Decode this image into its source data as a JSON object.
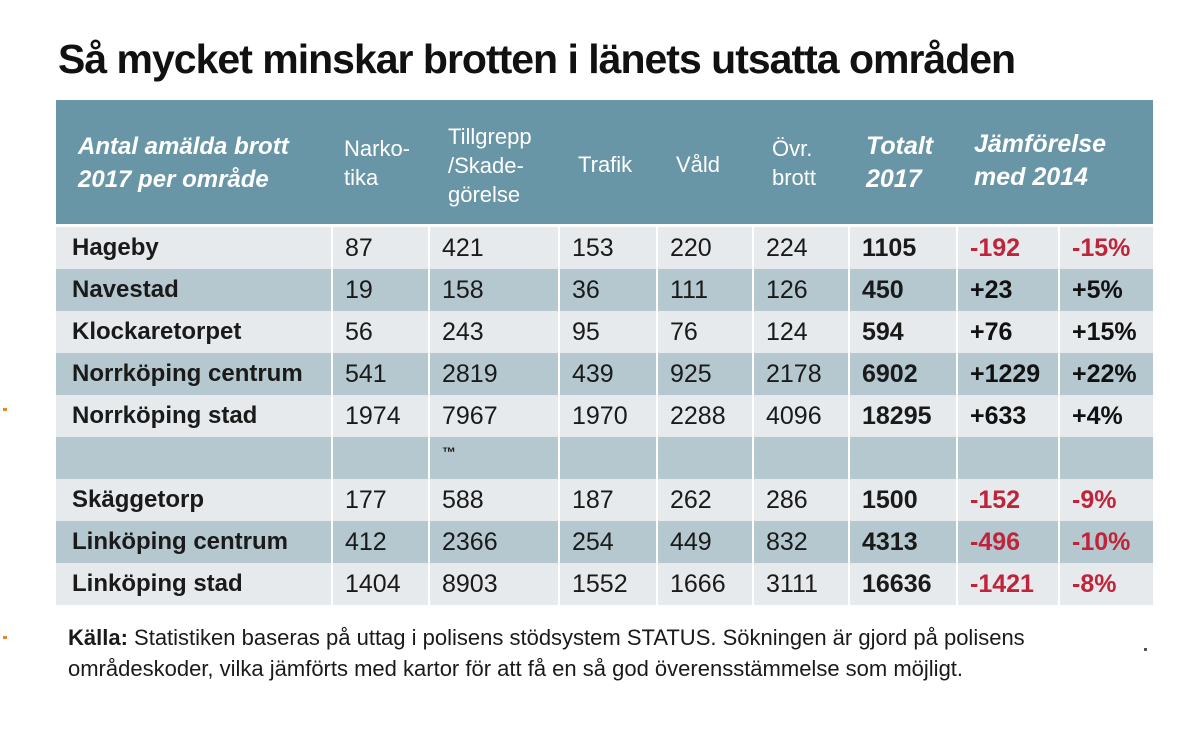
{
  "title": "Så mycket minskar brotten i länets utsatta områden",
  "header": {
    "area": "Antal amälda brott\n2017 per område",
    "narkotika": "Narko-\ntika",
    "tillgrepp": "Tillgrepp\n/Skade-\ngörelse",
    "trafik": "Trafik",
    "vald": "Våld",
    "ovr": "Övr.\nbrott",
    "totalt": "Totalt\n2017",
    "jamforelse": "Jämförelse\nmed 2014"
  },
  "rows": [
    {
      "name": "Hageby",
      "narkotika": "87",
      "tillgrepp": "421",
      "trafik": "153",
      "vald": "220",
      "ovr": "224",
      "totalt": "1105",
      "diff": "-192",
      "pct": "-15%"
    },
    {
      "name": "Navestad",
      "narkotika": "19",
      "tillgrepp": "158",
      "trafik": "36",
      "vald": "111",
      "ovr": "126",
      "totalt": "450",
      "diff": "+23",
      "pct": "+5%"
    },
    {
      "name": "Klockaretorpet",
      "narkotika": "56",
      "tillgrepp": "243",
      "trafik": "95",
      "vald": "76",
      "ovr": "124",
      "totalt": "594",
      "diff": "+76",
      "pct": "+15%"
    },
    {
      "name": "Norrköping centrum",
      "narkotika": "541",
      "tillgrepp": "2819",
      "trafik": "439",
      "vald": "925",
      "ovr": "2178",
      "totalt": "6902",
      "diff": "+1229",
      "pct": "+22%"
    },
    {
      "name": "Norrköping stad",
      "narkotika": "1974",
      "tillgrepp": "7967",
      "trafik": "1970",
      "vald": "2288",
      "ovr": "4096",
      "totalt": "18295",
      "diff": "+633",
      "pct": "+4%"
    },
    {
      "name": "",
      "narkotika": "",
      "tillgrepp": "™",
      "trafik": "",
      "vald": "",
      "ovr": "",
      "totalt": "",
      "diff": "",
      "pct": ""
    },
    {
      "name": "Skäggetorp",
      "narkotika": "177",
      "tillgrepp": "588",
      "trafik": "187",
      "vald": "262",
      "ovr": "286",
      "totalt": "1500",
      "diff": "-152",
      "pct": "-9%"
    },
    {
      "name": "Linköping centrum",
      "narkotika": "412",
      "tillgrepp": "2366",
      "trafik": "254",
      "vald": "449",
      "ovr": "832",
      "totalt": "4313",
      "diff": "-496",
      "pct": "-10%"
    },
    {
      "name": "Linköping stad",
      "narkotika": "1404",
      "tillgrepp": "8903",
      "trafik": "1552",
      "vald": "1666",
      "ovr": "3111",
      "totalt": "16636",
      "diff": "-1421",
      "pct": "-8%"
    }
  ],
  "colors": {
    "header_bg": "#6996a7",
    "row_light": "#e6eaec",
    "row_dark": "#b5c8cf",
    "negative": "#c0243a"
  },
  "footer": {
    "label": "Källa:",
    "text": " Statistiken baseras på uttag i polisens stödsystem STATUS. Sökningen är gjord på polisens områdeskoder, vilka jämförts med kartor för att få en så god överensstämmelse som möjligt."
  }
}
